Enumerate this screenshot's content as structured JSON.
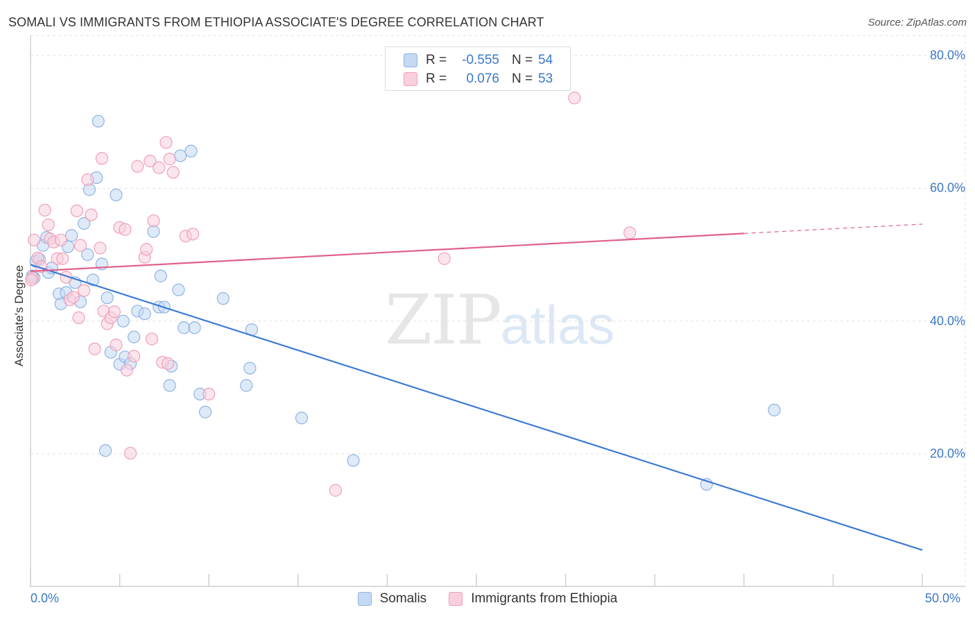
{
  "title": "SOMALI VS IMMIGRANTS FROM ETHIOPIA ASSOCIATE'S DEGREE CORRELATION CHART",
  "source": "Source: ZipAtlas.com",
  "watermark": {
    "part1": "ZIP",
    "part2": "atlas"
  },
  "legend_top": {
    "rows": [
      {
        "r_label": "R =",
        "r_value": "-0.555",
        "n_label": "N =",
        "n_value": "54"
      },
      {
        "r_label": "R =",
        "r_value": "0.076",
        "n_label": "N =",
        "n_value": "53"
      }
    ]
  },
  "legend_bottom": {
    "items": [
      "Somalis",
      "Immigrants from Ethiopia"
    ]
  },
  "colors": {
    "somalis_fill": "#c5d9f3",
    "somalis_stroke": "#8eb3e3",
    "somalis_line": "#3a78d4",
    "ethiopia_fill": "#f8cfdc",
    "ethiopia_stroke": "#ef9fb9",
    "ethiopia_line": "#e0608a",
    "tick_label": "#3a78c9",
    "grid": "#e2e2e2"
  },
  "chart_data": {
    "type": "scatter",
    "title": "SOMALI VS IMMIGRANTS FROM ETHIOPIA ASSOCIATE'S DEGREE CORRELATION CHART",
    "xlabel": "",
    "ylabel": "Associate's Degree",
    "xlim": [
      0,
      50
    ],
    "ylim": [
      0,
      83
    ],
    "x_tick_labels": [
      "0.0%",
      "50.0%"
    ],
    "y_ticks": [
      20,
      40,
      60,
      80
    ],
    "y_tick_labels": [
      "20.0%",
      "40.0%",
      "60.0%",
      "80.0%"
    ],
    "grid": true,
    "legend_position": "bottom",
    "series": [
      {
        "name": "Somalis",
        "r": -0.555,
        "n": 54,
        "trend": {
          "x": [
            0,
            50
          ],
          "y": [
            48.5,
            5.5
          ]
        },
        "points": [
          [
            0.2,
            46.5
          ],
          [
            0.3,
            49.0
          ],
          [
            0.5,
            49.3
          ],
          [
            0.7,
            51.4
          ],
          [
            0.9,
            52.6
          ],
          [
            1.0,
            47.3
          ],
          [
            1.2,
            48.0
          ],
          [
            1.6,
            44.1
          ],
          [
            1.7,
            42.6
          ],
          [
            2.0,
            44.3
          ],
          [
            2.1,
            51.2
          ],
          [
            2.3,
            52.9
          ],
          [
            2.5,
            45.8
          ],
          [
            2.8,
            42.9
          ],
          [
            3.0,
            54.7
          ],
          [
            3.2,
            50.0
          ],
          [
            3.3,
            59.8
          ],
          [
            3.5,
            46.2
          ],
          [
            3.7,
            61.6
          ],
          [
            3.8,
            70.1
          ],
          [
            4.0,
            48.6
          ],
          [
            4.3,
            43.5
          ],
          [
            4.5,
            35.3
          ],
          [
            4.8,
            59.0
          ],
          [
            5.0,
            33.5
          ],
          [
            5.2,
            40.0
          ],
          [
            5.3,
            34.6
          ],
          [
            5.6,
            33.6
          ],
          [
            5.8,
            37.6
          ],
          [
            6.0,
            41.5
          ],
          [
            6.4,
            41.1
          ],
          [
            6.9,
            53.5
          ],
          [
            7.2,
            42.1
          ],
          [
            7.3,
            46.8
          ],
          [
            7.5,
            42.1
          ],
          [
            7.9,
            33.2
          ],
          [
            7.8,
            30.3
          ],
          [
            8.3,
            44.7
          ],
          [
            8.4,
            64.9
          ],
          [
            8.6,
            39.0
          ],
          [
            9.0,
            65.6
          ],
          [
            9.2,
            39.0
          ],
          [
            9.5,
            29.0
          ],
          [
            9.8,
            26.3
          ],
          [
            10.8,
            43.4
          ],
          [
            12.1,
            30.3
          ],
          [
            12.3,
            32.9
          ],
          [
            12.4,
            38.7
          ],
          [
            4.2,
            20.5
          ],
          [
            15.2,
            25.4
          ],
          [
            18.1,
            19.0
          ],
          [
            37.9,
            15.4
          ],
          [
            41.7,
            26.6
          ],
          [
            0.1,
            46.8
          ]
        ]
      },
      {
        "name": "Immigrants from Ethiopia",
        "r": 0.076,
        "n": 53,
        "trend": {
          "x": [
            0,
            40,
            50
          ],
          "y": [
            47.5,
            53.2,
            54.6
          ],
          "solid_until": 40
        },
        "points": [
          [
            0.1,
            46.5
          ],
          [
            0.2,
            52.2
          ],
          [
            0.4,
            49.5
          ],
          [
            0.6,
            48.2
          ],
          [
            0.8,
            56.7
          ],
          [
            1.0,
            54.5
          ],
          [
            1.1,
            52.4
          ],
          [
            1.3,
            51.9
          ],
          [
            1.5,
            49.4
          ],
          [
            1.7,
            52.2
          ],
          [
            1.8,
            49.4
          ],
          [
            2.0,
            46.6
          ],
          [
            2.2,
            43.2
          ],
          [
            2.4,
            43.6
          ],
          [
            2.6,
            56.6
          ],
          [
            2.7,
            40.5
          ],
          [
            2.8,
            51.4
          ],
          [
            3.0,
            44.6
          ],
          [
            3.2,
            61.3
          ],
          [
            3.4,
            56.0
          ],
          [
            3.6,
            35.8
          ],
          [
            3.9,
            51.0
          ],
          [
            4.0,
            64.5
          ],
          [
            4.1,
            41.5
          ],
          [
            4.3,
            39.6
          ],
          [
            4.5,
            40.5
          ],
          [
            4.7,
            41.4
          ],
          [
            4.8,
            36.4
          ],
          [
            5.0,
            54.1
          ],
          [
            5.3,
            53.8
          ],
          [
            5.4,
            32.6
          ],
          [
            5.6,
            20.1
          ],
          [
            5.8,
            34.7
          ],
          [
            6.0,
            63.3
          ],
          [
            6.4,
            49.6
          ],
          [
            6.5,
            50.8
          ],
          [
            6.7,
            64.1
          ],
          [
            6.8,
            37.3
          ],
          [
            6.9,
            55.1
          ],
          [
            7.2,
            63.1
          ],
          [
            7.4,
            33.8
          ],
          [
            7.6,
            66.9
          ],
          [
            7.7,
            33.6
          ],
          [
            7.8,
            64.4
          ],
          [
            8.0,
            62.4
          ],
          [
            8.7,
            52.8
          ],
          [
            9.1,
            53.1
          ],
          [
            10.0,
            29.0
          ],
          [
            17.1,
            14.5
          ],
          [
            23.2,
            49.4
          ],
          [
            30.5,
            73.6
          ],
          [
            33.6,
            53.3
          ],
          [
            0.05,
            46.2
          ]
        ]
      }
    ]
  }
}
